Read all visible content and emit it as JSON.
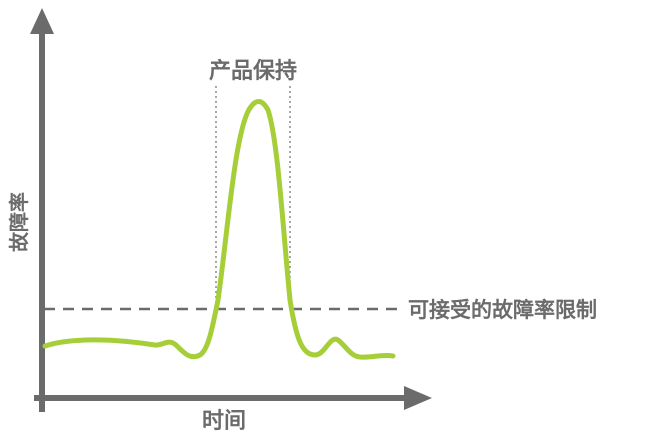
{
  "diagram": {
    "top_label": "产品保持",
    "y_axis_label": "故障率",
    "x_axis_label": "时间",
    "threshold_label": "可接受的故障率限制",
    "colors": {
      "axis": "#6b6b6b",
      "curve": "#a6ce39",
      "dashed": "#6b6b6b",
      "dotted": "#888888"
    }
  }
}
